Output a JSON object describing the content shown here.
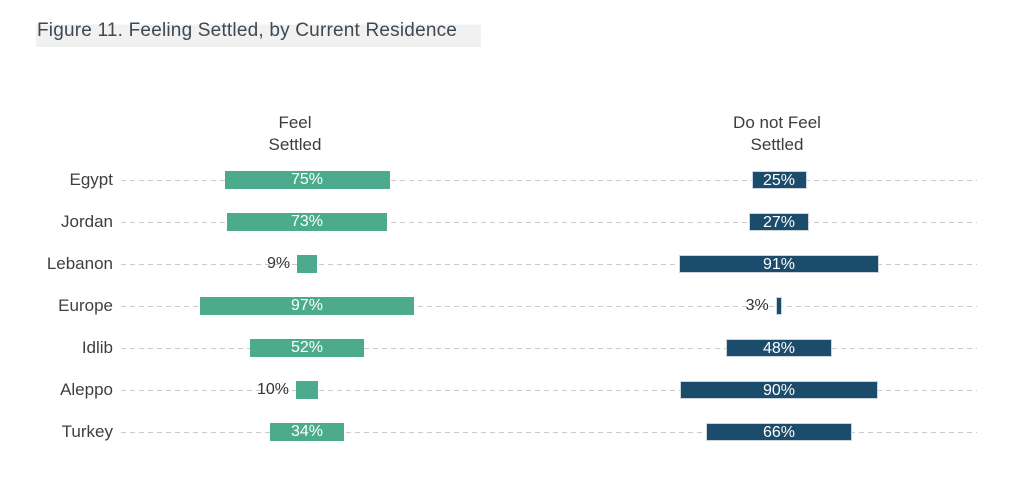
{
  "title": "Figure 11. Feeling Settled, by Current Residence",
  "columns": {
    "left_header": "Feel\nSettled",
    "right_header": "Do not Feel\nSettled"
  },
  "colors": {
    "feel_settled_green": "#4cab8d",
    "do_not_feel_settled_navy": "#1c4c6c",
    "navy_bar_border": "#ccd4dd",
    "dashed_gridline": "#c9c9c9",
    "category_label_text": "#3f3f3f",
    "title_text": "#3e4953",
    "title_highlight": "#f1f1f1",
    "bar_value_text_inside": "#ffffff",
    "bar_value_text_outside": "#333333"
  },
  "chart_data": {
    "type": "bar",
    "orientation": "horizontal",
    "layout": "two-column mirrored percentage bars, centered per column, dashed row gridlines",
    "title": "Figure 11. Feeling Settled, by Current Residence",
    "categories": [
      "Egypt",
      "Jordan",
      "Lebanon",
      "Europe",
      "Idlib",
      "Aleppo",
      "Turkey"
    ],
    "series": [
      {
        "name": "Feel Settled",
        "color": "#4cab8d",
        "values": [
          75,
          73,
          9,
          97,
          52,
          10,
          34
        ]
      },
      {
        "name": "Do not Feel Settled",
        "color": "#1c4c6c",
        "values": [
          25,
          27,
          91,
          3,
          48,
          90,
          66
        ]
      }
    ],
    "value_format": "percent",
    "value_labels": {
      "inside_color": "#ffffff",
      "outside_color": "#333333",
      "outside_if_value_below": 15
    },
    "xlim": [
      0,
      100
    ],
    "grid": "dashed horizontal row lines",
    "legend_position": "column headers above bars"
  }
}
